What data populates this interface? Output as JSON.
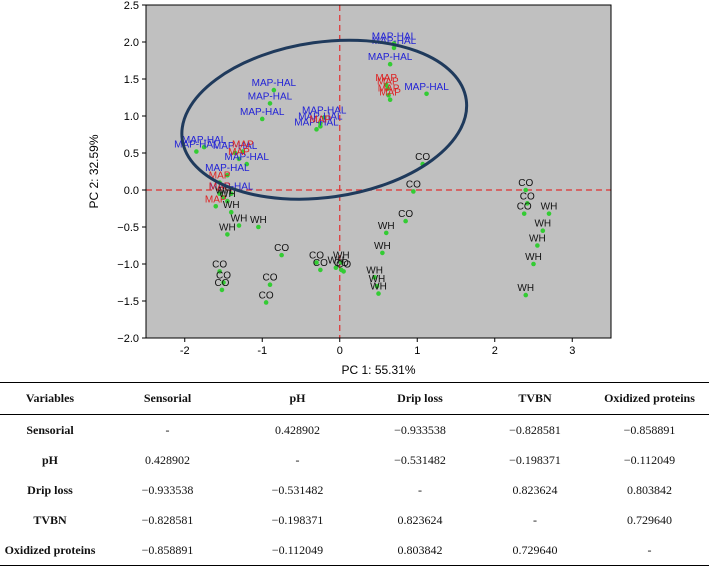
{
  "chart_data": {
    "type": "scatter",
    "xlabel": "PC 1: 55.31%",
    "ylabel": "PC 2: 32.59%",
    "xlim": [
      -2.5,
      3.5
    ],
    "ylim": [
      -2.0,
      2.5
    ],
    "xticks": [
      -2,
      -1,
      0,
      1,
      2,
      3
    ],
    "yticks": [
      -2.0,
      -1.5,
      -1.0,
      -0.5,
      0.0,
      0.5,
      1.0,
      1.5,
      2.0,
      2.5
    ],
    "reference_lines": {
      "x": 0,
      "y": 0
    },
    "ellipse": {
      "cx": -0.2,
      "cy": 0.95,
      "rx": 1.85,
      "ry": 1.05,
      "rotation_deg": 8
    },
    "colors": {
      "plot_bg": "#c0c0c0",
      "point": "#33cc33",
      "MAP-HAL": "#2121d6",
      "MAP": "#dd2222",
      "WH": "#111111",
      "CO": "#111111",
      "ref_line": "#e03030",
      "ellipse": "#1f3a5c"
    },
    "series": [
      {
        "name": "MAP-HAL",
        "points": [
          [
            0.7,
            1.98
          ],
          [
            0.7,
            1.92
          ],
          [
            0.65,
            1.7
          ],
          [
            1.12,
            1.3
          ],
          [
            -0.85,
            1.35
          ],
          [
            -0.9,
            1.17
          ],
          [
            -1.0,
            0.96
          ],
          [
            -0.2,
            0.98
          ],
          [
            -0.25,
            0.9
          ],
          [
            -0.3,
            0.82
          ],
          [
            -1.75,
            0.58
          ],
          [
            -1.85,
            0.52
          ],
          [
            -1.35,
            0.5
          ],
          [
            -1.2,
            0.35
          ],
          [
            -1.45,
            0.2
          ],
          [
            -1.4,
            -0.05
          ]
        ]
      },
      {
        "name": "MAP",
        "points": [
          [
            0.6,
            1.42
          ],
          [
            0.62,
            1.37
          ],
          [
            0.63,
            1.28
          ],
          [
            0.65,
            1.22
          ],
          [
            -0.25,
            0.86
          ],
          [
            -1.25,
            0.52
          ],
          [
            -1.3,
            0.42
          ],
          [
            -1.55,
            0.1
          ],
          [
            -1.55,
            -0.05
          ],
          [
            -1.6,
            -0.22
          ]
        ]
      },
      {
        "name": "WH",
        "points": [
          [
            -1.5,
            -0.1
          ],
          [
            -1.45,
            -0.15
          ],
          [
            -1.4,
            -0.3
          ],
          [
            -1.3,
            -0.48
          ],
          [
            -1.05,
            -0.5
          ],
          [
            -1.45,
            -0.6
          ],
          [
            0.6,
            -0.58
          ],
          [
            0.55,
            -0.85
          ],
          [
            0.02,
            -0.98
          ],
          [
            -0.05,
            -1.05
          ],
          [
            0.45,
            -1.18
          ],
          [
            0.48,
            -1.3
          ],
          [
            0.5,
            -1.4
          ],
          [
            2.7,
            -0.32
          ],
          [
            2.62,
            -0.55
          ],
          [
            2.55,
            -0.75
          ],
          [
            2.5,
            -1.0
          ],
          [
            2.4,
            -1.42
          ]
        ]
      },
      {
        "name": "CO",
        "points": [
          [
            1.07,
            0.35
          ],
          [
            0.95,
            -0.02
          ],
          [
            0.85,
            -0.42
          ],
          [
            -0.75,
            -0.88
          ],
          [
            -0.3,
            -0.98
          ],
          [
            -0.25,
            -1.08
          ],
          [
            0.02,
            -1.08
          ],
          [
            0.05,
            -1.1
          ],
          [
            -1.55,
            -1.1
          ],
          [
            -1.5,
            -1.25
          ],
          [
            -1.52,
            -1.35
          ],
          [
            -0.9,
            -1.28
          ],
          [
            -0.95,
            -1.52
          ],
          [
            2.4,
            0.0
          ],
          [
            2.42,
            -0.18
          ],
          [
            2.38,
            -0.32
          ]
        ]
      }
    ],
    "correlation_table": {
      "headers": [
        "Variables",
        "Sensorial",
        "pH",
        "Drip loss",
        "TVBN",
        "Oxidized proteins"
      ],
      "rows": [
        [
          "Sensorial",
          "-",
          "0.428902",
          "−0.933538",
          "−0.828581",
          "−0.858891"
        ],
        [
          "pH",
          "0.428902",
          "-",
          "−0.531482",
          "−0.198371",
          "−0.112049"
        ],
        [
          "Drip loss",
          "−0.933538",
          "−0.531482",
          "-",
          "0.823624",
          "0.803842"
        ],
        [
          "TVBN",
          "−0.828581",
          "−0.198371",
          "0.823624",
          "-",
          "0.729640"
        ],
        [
          "Oxidized proteins",
          "−0.858891",
          "−0.112049",
          "0.803842",
          "0.729640",
          "-"
        ]
      ]
    }
  }
}
